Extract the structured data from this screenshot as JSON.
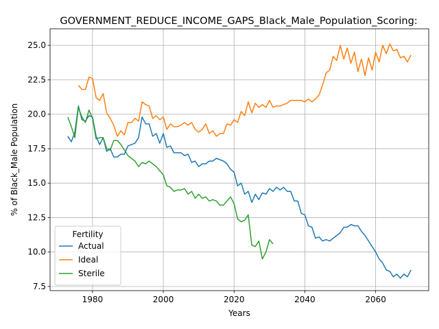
{
  "chart_data": {
    "type": "line",
    "title": "GOVERNMENT_REDUCE_INCOME_GAPS_Black_Male_Population_Scoring:",
    "xlabel": "Years",
    "ylabel": "% of Black_Male Population",
    "xlim": [
      1968,
      2075
    ],
    "ylim": [
      7.2,
      26.2
    ],
    "xticks": [
      1980,
      2000,
      2020,
      2040,
      2060
    ],
    "yticks": [
      7.5,
      10.0,
      12.5,
      15.0,
      17.5,
      20.0,
      22.5,
      25.0
    ],
    "grid": true,
    "legend": {
      "title": "Fertility",
      "placement": "lower-left"
    },
    "series": [
      {
        "name": "Actual",
        "color": "#1f77b4",
        "x": [
          1973,
          1974,
          1975,
          1976,
          1977,
          1978,
          1979,
          1980,
          1981,
          1982,
          1983,
          1984,
          1985,
          1986,
          1987,
          1988,
          1989,
          1990,
          1991,
          1992,
          1993,
          1994,
          1995,
          1996,
          1997,
          1998,
          1999,
          2000,
          2001,
          2002,
          2003,
          2004,
          2005,
          2006,
          2007,
          2008,
          2009,
          2010,
          2011,
          2012,
          2013,
          2014,
          2015,
          2016,
          2017,
          2018,
          2019,
          2020,
          2021,
          2022,
          2023,
          2024,
          2025,
          2026,
          2027,
          2028,
          2029,
          2030,
          2031,
          2032,
          2033,
          2034,
          2035,
          2036,
          2037,
          2038,
          2039,
          2040,
          2041,
          2042,
          2043,
          2044,
          2045,
          2046,
          2047,
          2048,
          2049,
          2050,
          2051,
          2052,
          2053,
          2054,
          2055,
          2056,
          2057,
          2058,
          2059,
          2060,
          2061,
          2062,
          2063,
          2064,
          2065,
          2066,
          2067,
          2068,
          2069,
          2070
        ],
        "values": [
          18.4,
          18.0,
          18.7,
          20.6,
          19.6,
          19.5,
          19.9,
          19.8,
          18.4,
          17.8,
          18.3,
          17.3,
          17.5,
          16.9,
          16.9,
          17.1,
          17.1,
          17.7,
          17.8,
          17.9,
          18.3,
          19.8,
          19.3,
          19.3,
          18.4,
          18.6,
          17.9,
          18.6,
          17.6,
          17.7,
          17.2,
          17.2,
          17.2,
          17.0,
          17.1,
          16.5,
          16.6,
          16.2,
          16.4,
          16.4,
          16.6,
          16.6,
          16.8,
          16.7,
          16.6,
          16.4,
          16.0,
          15.8,
          14.8,
          15.0,
          14.2,
          14.4,
          13.6,
          14.2,
          13.8,
          14.3,
          14.2,
          14.6,
          14.4,
          14.7,
          14.5,
          14.7,
          14.4,
          14.4,
          13.7,
          13.7,
          12.8,
          12.7,
          11.9,
          11.8,
          11.0,
          11.1,
          10.8,
          10.9,
          10.8,
          11.0,
          11.2,
          11.4,
          11.8,
          11.8,
          12.0,
          11.9,
          11.9,
          11.5,
          11.2,
          10.8,
          10.4,
          10.0,
          9.5,
          9.2,
          8.7,
          8.6,
          8.2,
          8.4,
          8.1,
          8.4,
          8.2,
          8.7
        ]
      },
      {
        "name": "Ideal",
        "color": "#ff7f0e",
        "x": [
          1976,
          1977,
          1978,
          1979,
          1980,
          1981,
          1982,
          1983,
          1984,
          1985,
          1986,
          1987,
          1988,
          1989,
          1990,
          1991,
          1992,
          1993,
          1994,
          1995,
          1996,
          1997,
          1998,
          1999,
          2000,
          2001,
          2002,
          2003,
          2004,
          2005,
          2006,
          2007,
          2008,
          2009,
          2010,
          2011,
          2012,
          2013,
          2014,
          2015,
          2016,
          2017,
          2018,
          2019,
          2020,
          2021,
          2022,
          2023,
          2024,
          2025,
          2026,
          2027,
          2028,
          2029,
          2030,
          2031,
          2032,
          2033,
          2034,
          2035,
          2036,
          2037,
          2038,
          2039,
          2040,
          2041,
          2042,
          2043,
          2044,
          2045,
          2046,
          2047,
          2048,
          2049,
          2050,
          2051,
          2052,
          2053,
          2054,
          2055,
          2056,
          2057,
          2058,
          2059,
          2060,
          2061,
          2062,
          2063,
          2064,
          2065,
          2066,
          2067,
          2068,
          2069,
          2070
        ],
        "values": [
          22.1,
          21.8,
          21.8,
          22.7,
          22.6,
          21.2,
          21.0,
          21.5,
          20.1,
          19.7,
          19.2,
          18.4,
          18.8,
          18.5,
          19.4,
          19.4,
          19.7,
          19.5,
          20.9,
          20.7,
          20.6,
          19.7,
          19.9,
          19.6,
          19.8,
          18.9,
          19.3,
          19.1,
          19.1,
          19.2,
          19.4,
          19.2,
          19.4,
          18.9,
          18.7,
          18.9,
          19.3,
          18.6,
          18.8,
          18.4,
          18.6,
          18.6,
          19.3,
          19.2,
          19.6,
          19.4,
          20.2,
          19.9,
          20.9,
          20.1,
          20.8,
          20.5,
          20.7,
          20.5,
          21.0,
          20.5,
          20.6,
          20.6,
          20.7,
          20.8,
          21.0,
          21.0,
          21.0,
          21.0,
          20.9,
          21.1,
          20.9,
          21.1,
          21.4,
          22.1,
          23.0,
          23.2,
          24.2,
          23.9,
          25.0,
          24.0,
          24.8,
          23.7,
          24.5,
          23.1,
          24.0,
          22.8,
          24.1,
          23.2,
          24.5,
          23.8,
          25.0,
          24.4,
          25.1,
          24.6,
          24.7,
          24.1,
          24.2,
          23.8,
          24.3
        ]
      },
      {
        "name": "Sterile",
        "color": "#2ca02c",
        "x": [
          1973,
          1974,
          1975,
          1976,
          1977,
          1978,
          1979,
          1980,
          1981,
          1982,
          1983,
          1984,
          1985,
          1986,
          1987,
          1988,
          1989,
          1990,
          1991,
          1992,
          1993,
          1994,
          1995,
          1996,
          1997,
          1998,
          1999,
          2000,
          2001,
          2002,
          2003,
          2004,
          2005,
          2006,
          2007,
          2008,
          2009,
          2010,
          2011,
          2012,
          2013,
          2014,
          2015,
          2016,
          2017,
          2018,
          2019,
          2020,
          2021,
          2022,
          2023,
          2024,
          2025,
          2026,
          2027,
          2028,
          2029,
          2030,
          2031
        ],
        "values": [
          19.8,
          19.1,
          18.3,
          20.5,
          19.8,
          19.4,
          20.3,
          19.7,
          18.2,
          18.3,
          18.3,
          17.5,
          17.4,
          18.1,
          18.1,
          17.8,
          17.4,
          17.0,
          16.8,
          16.6,
          16.2,
          16.5,
          16.4,
          16.6,
          16.4,
          16.2,
          15.9,
          15.6,
          14.8,
          14.7,
          14.4,
          14.5,
          14.5,
          14.6,
          14.2,
          14.4,
          13.9,
          14.2,
          13.9,
          14.0,
          13.7,
          13.8,
          13.7,
          13.4,
          13.4,
          13.7,
          14.0,
          13.5,
          12.4,
          12.2,
          12.3,
          12.7,
          10.5,
          10.4,
          10.8,
          9.5,
          10.0,
          10.9,
          10.6
        ]
      }
    ]
  }
}
